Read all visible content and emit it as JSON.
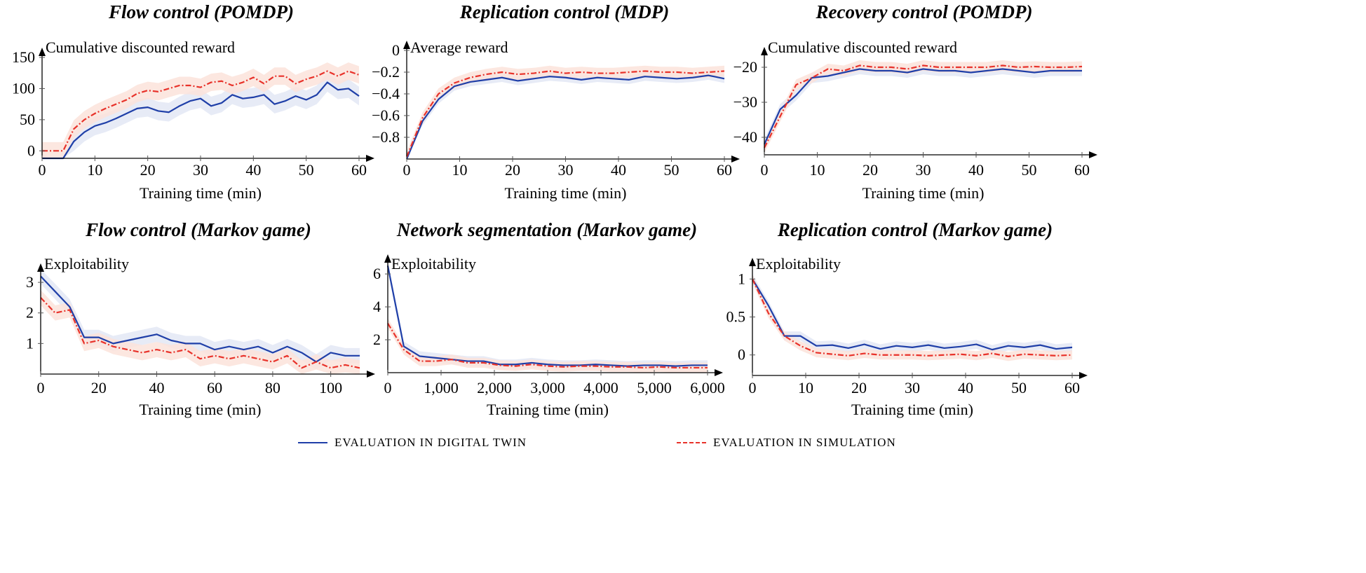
{
  "colors": {
    "digital_twin": "#1f3fa8",
    "simulation": "#e8322a",
    "digital_twin_band": "#e3e8f5",
    "simulation_band": "#fbe3da"
  },
  "legend": [
    {
      "label": "EVALUATION IN DIGITAL TWIN",
      "style": "solid",
      "color": "#1f3fa8"
    },
    {
      "label": "EVALUATION IN SIMULATION",
      "style": "dash-dot",
      "color": "#e8322a"
    }
  ],
  "chart_data": [
    {
      "type": "line",
      "title": "Flow control (POMDP)",
      "ylabel": "Cumulative discounted reward",
      "xlabel": "Training time (min)",
      "xlim": [
        0,
        60
      ],
      "ylim": [
        -12,
        150
      ],
      "xticks": [
        0,
        10,
        20,
        30,
        40,
        50,
        60
      ],
      "yticks": [
        0,
        50,
        100,
        150
      ],
      "x": [
        0,
        2,
        4,
        6,
        8,
        10,
        12,
        14,
        16,
        18,
        20,
        22,
        24,
        26,
        28,
        30,
        32,
        34,
        36,
        38,
        40,
        42,
        44,
        46,
        48,
        50,
        52,
        54,
        56,
        58,
        60
      ],
      "series": [
        {
          "name": "EVALUATION IN DIGITAL TWIN",
          "values": [
            -20,
            -30,
            -25,
            15,
            30,
            40,
            45,
            52,
            60,
            68,
            70,
            64,
            62,
            72,
            80,
            84,
            72,
            77,
            90,
            84,
            86,
            90,
            75,
            80,
            88,
            82,
            90,
            110,
            98,
            100,
            88
          ],
          "band": 15
        },
        {
          "name": "EVALUATION IN SIMULATION",
          "values": [
            0,
            0,
            0,
            35,
            50,
            60,
            68,
            75,
            82,
            92,
            97,
            95,
            100,
            105,
            105,
            102,
            110,
            112,
            105,
            110,
            118,
            108,
            120,
            120,
            108,
            115,
            120,
            128,
            120,
            128,
            122
          ],
          "band": 14
        }
      ]
    },
    {
      "type": "line",
      "title": "Replication control (MDP)",
      "ylabel": "Average reward",
      "xlabel": "Training time (min)",
      "xlim": [
        0,
        60
      ],
      "ylim": [
        -1,
        0
      ],
      "xticks": [
        0,
        10,
        20,
        30,
        40,
        50,
        60
      ],
      "yticks": [
        0,
        -0.2,
        -0.4,
        -0.6,
        -0.8
      ],
      "x": [
        0,
        3,
        6,
        9,
        12,
        15,
        18,
        21,
        24,
        27,
        30,
        33,
        36,
        39,
        42,
        45,
        48,
        51,
        54,
        57,
        60
      ],
      "series": [
        {
          "name": "EVALUATION IN DIGITAL TWIN",
          "values": [
            -1.0,
            -0.65,
            -0.45,
            -0.33,
            -0.29,
            -0.27,
            -0.25,
            -0.28,
            -0.26,
            -0.24,
            -0.25,
            -0.27,
            -0.25,
            -0.26,
            -0.27,
            -0.24,
            -0.25,
            -0.26,
            -0.25,
            -0.23,
            -0.26
          ],
          "band": 0.04
        },
        {
          "name": "EVALUATION IN SIMULATION",
          "values": [
            -0.98,
            -0.62,
            -0.4,
            -0.3,
            -0.25,
            -0.22,
            -0.2,
            -0.22,
            -0.21,
            -0.19,
            -0.21,
            -0.2,
            -0.21,
            -0.21,
            -0.2,
            -0.19,
            -0.2,
            -0.2,
            -0.21,
            -0.2,
            -0.19
          ],
          "band": 0.05
        }
      ]
    },
    {
      "type": "line",
      "title": "Recovery control (POMDP)",
      "ylabel": "Cumulative discounted reward",
      "xlabel": "Training time (min)",
      "xlim": [
        0,
        60
      ],
      "ylim": [
        -45,
        -17
      ],
      "xticks": [
        0,
        10,
        20,
        30,
        40,
        50,
        60
      ],
      "yticks": [
        -20,
        -30,
        -40
      ],
      "x": [
        0,
        3,
        6,
        9,
        12,
        15,
        18,
        21,
        24,
        27,
        30,
        33,
        36,
        39,
        42,
        45,
        48,
        51,
        54,
        57,
        60
      ],
      "series": [
        {
          "name": "EVALUATION IN DIGITAL TWIN",
          "values": [
            -42,
            -32,
            -28,
            -23,
            -22.5,
            -21.5,
            -20.5,
            -21,
            -21,
            -21.5,
            -20.5,
            -21,
            -21,
            -21.5,
            -21,
            -20.5,
            -21,
            -21.5,
            -21,
            -21,
            -21
          ],
          "band": 1.5
        },
        {
          "name": "EVALUATION IN SIMULATION",
          "values": [
            -43,
            -34,
            -25,
            -23,
            -20.5,
            -21,
            -19.5,
            -20,
            -20,
            -20.5,
            -19.5,
            -20,
            -20,
            -20,
            -20,
            -19.5,
            -20,
            -19.8,
            -20,
            -20,
            -19.8
          ],
          "band": 1.5
        }
      ]
    },
    {
      "type": "line",
      "title": "Flow control (Markov game)",
      "ylabel": "Exploitability",
      "xlabel": "Training time (min)",
      "xlim": [
        0,
        110
      ],
      "ylim": [
        0,
        3.3
      ],
      "xticks": [
        0,
        20,
        40,
        60,
        80,
        100
      ],
      "yticks": [
        1,
        2,
        3
      ],
      "x": [
        0,
        5,
        10,
        15,
        20,
        25,
        30,
        35,
        40,
        45,
        50,
        55,
        60,
        65,
        70,
        75,
        80,
        85,
        90,
        95,
        100,
        105,
        110
      ],
      "series": [
        {
          "name": "EVALUATION IN DIGITAL TWIN",
          "values": [
            3.2,
            2.7,
            2.2,
            1.2,
            1.2,
            1.0,
            1.1,
            1.2,
            1.3,
            1.1,
            1.0,
            1.0,
            0.8,
            0.9,
            0.8,
            0.9,
            0.7,
            0.9,
            0.7,
            0.4,
            0.7,
            0.6,
            0.6
          ],
          "band": 0.25
        },
        {
          "name": "EVALUATION IN SIMULATION",
          "values": [
            2.5,
            2.0,
            2.1,
            1.0,
            1.1,
            0.9,
            0.8,
            0.7,
            0.8,
            0.7,
            0.8,
            0.5,
            0.6,
            0.5,
            0.6,
            0.5,
            0.4,
            0.6,
            0.2,
            0.4,
            0.2,
            0.3,
            0.2
          ],
          "band": 0.25
        }
      ]
    },
    {
      "type": "line",
      "title": "Network segmentation (Markov game)",
      "ylabel": "Exploitability",
      "xlabel": "Training time (min)",
      "xlim": [
        0,
        6000
      ],
      "ylim": [
        0,
        6.6
      ],
      "xticks": [
        0,
        1000,
        2000,
        3000,
        4000,
        5000,
        6000
      ],
      "xtick_labels": [
        "0",
        "1,000",
        "2,000",
        "3,000",
        "4,000",
        "5,000",
        "6,000"
      ],
      "yticks": [
        2,
        4,
        6
      ],
      "x": [
        0,
        300,
        600,
        900,
        1200,
        1500,
        1800,
        2100,
        2400,
        2700,
        3000,
        3300,
        3600,
        3900,
        4200,
        4500,
        4800,
        5100,
        5400,
        5700,
        6000
      ],
      "series": [
        {
          "name": "EVALUATION IN DIGITAL TWIN",
          "values": [
            6.5,
            1.6,
            1.0,
            0.9,
            0.8,
            0.7,
            0.7,
            0.5,
            0.5,
            0.6,
            0.5,
            0.45,
            0.45,
            0.5,
            0.45,
            0.4,
            0.45,
            0.45,
            0.4,
            0.45,
            0.45
          ],
          "band": 0.3
        },
        {
          "name": "EVALUATION IN SIMULATION",
          "values": [
            3.0,
            1.4,
            0.7,
            0.7,
            0.8,
            0.6,
            0.6,
            0.45,
            0.4,
            0.5,
            0.4,
            0.35,
            0.4,
            0.4,
            0.35,
            0.35,
            0.3,
            0.35,
            0.3,
            0.3,
            0.3
          ],
          "band": 0.3
        }
      ]
    },
    {
      "type": "line",
      "title": "Replication control (Markov game)",
      "ylabel": "Exploitability",
      "xlabel": "Training time (min)",
      "xlim": [
        0,
        60
      ],
      "ylim": [
        -0.27,
        1.15
      ],
      "xticks": [
        0,
        10,
        20,
        30,
        40,
        50,
        60
      ],
      "yticks": [
        0,
        0.5,
        1
      ],
      "x": [
        0,
        3,
        6,
        9,
        12,
        15,
        18,
        21,
        24,
        27,
        30,
        33,
        36,
        39,
        42,
        45,
        48,
        51,
        54,
        57,
        60
      ],
      "series": [
        {
          "name": "EVALUATION IN DIGITAL TWIN",
          "values": [
            1.0,
            0.65,
            0.25,
            0.25,
            0.12,
            0.13,
            0.09,
            0.14,
            0.08,
            0.12,
            0.1,
            0.13,
            0.09,
            0.11,
            0.14,
            0.07,
            0.12,
            0.1,
            0.13,
            0.08,
            0.1
          ],
          "band": 0.06
        },
        {
          "name": "EVALUATION IN SIMULATION",
          "values": [
            1.0,
            0.55,
            0.25,
            0.12,
            0.03,
            0.01,
            -0.01,
            0.02,
            0.0,
            0.0,
            0.0,
            -0.01,
            0.0,
            0.01,
            -0.01,
            0.02,
            -0.02,
            0.01,
            0.0,
            -0.01,
            0.0
          ],
          "band": 0.06
        }
      ]
    }
  ]
}
